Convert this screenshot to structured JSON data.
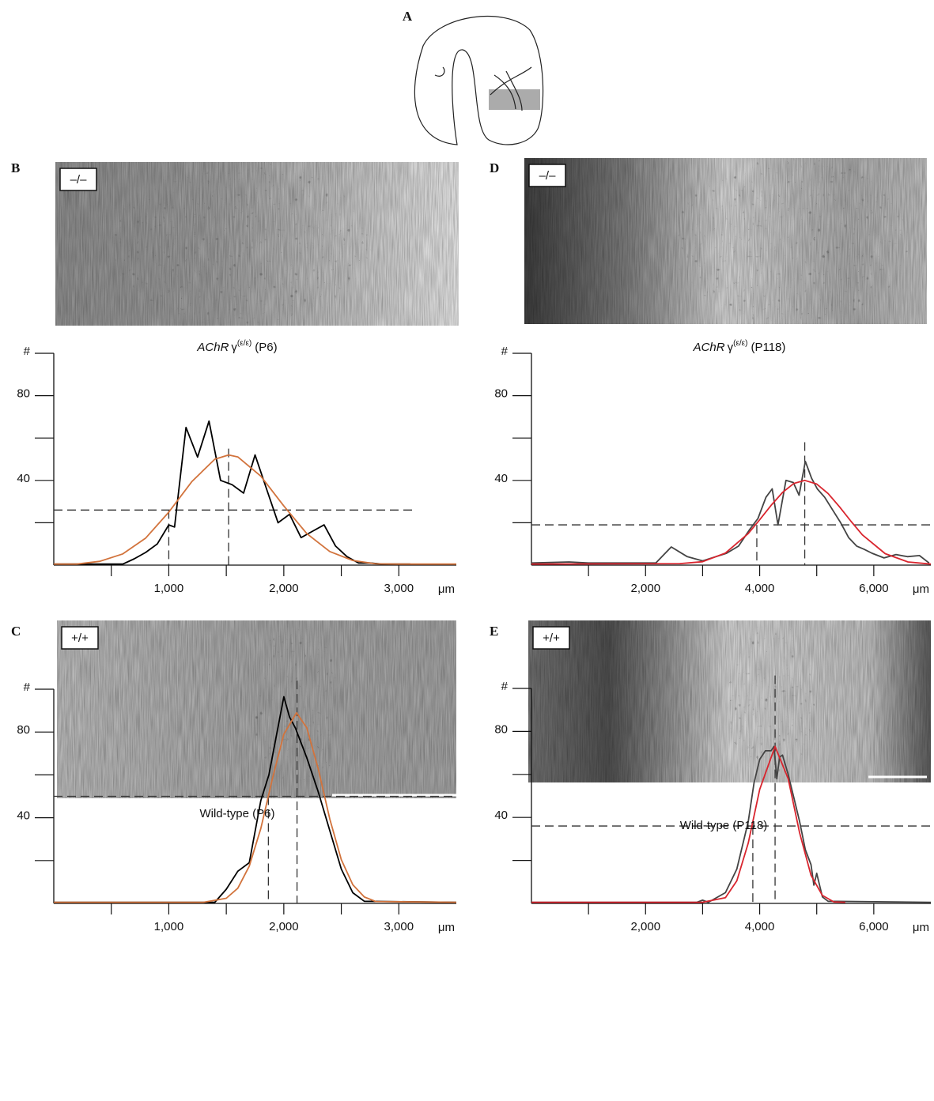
{
  "diagram_label": "A",
  "chart_data": [
    {
      "type": "line",
      "panel": "B",
      "genotype": "–/–",
      "title": {
        "gene": "AChR",
        "symbol": "γ",
        "superscript": "(ε/ε)",
        "stage": "(P6)"
      },
      "xlabel": "μm",
      "xlim": [
        0,
        3500
      ],
      "ylim": [
        0,
        100
      ],
      "xticks": [
        {
          "value": 1000,
          "label": "1,000"
        },
        {
          "value": 2000,
          "label": "2,000"
        },
        {
          "value": 3000,
          "label": "3,000"
        }
      ],
      "minor_xticks": [
        500,
        1500,
        2500
      ],
      "yticks": [
        {
          "value": 100,
          "label": "#"
        },
        80,
        40
      ],
      "minor_yticks": [
        20,
        60
      ],
      "series": [
        {
          "color": "#000000",
          "x": [
            0,
            600,
            700,
            800,
            900,
            1000,
            1050,
            1150,
            1250,
            1350,
            1450,
            1550,
            1650,
            1750,
            1850,
            1950,
            2050,
            2150,
            2250,
            2350,
            2450,
            2550,
            2650,
            2750,
            2850,
            2950,
            3100
          ],
          "values": [
            0.5,
            0.5,
            3,
            6,
            10,
            19,
            18,
            65,
            51,
            68,
            40,
            38,
            34,
            52,
            36,
            20,
            24,
            13,
            16,
            19,
            9,
            4,
            1,
            1,
            0.5,
            0.5,
            0.5
          ]
        },
        {
          "color": "#d2733c",
          "x": [
            0,
            200,
            400,
            600,
            800,
            1000,
            1200,
            1400,
            1520,
            1600,
            1800,
            2000,
            2200,
            2400,
            2600,
            2800,
            3000,
            3500
          ],
          "values": [
            0.5,
            0.5,
            1.8,
            5.3,
            12.8,
            25,
            39.4,
            50,
            52,
            51.1,
            42,
            27.9,
            14.9,
            6.4,
            2.2,
            0.6,
            0.5,
            0.5
          ]
        }
      ],
      "hlines": [
        {
          "y": 26,
          "x": [
            0,
            3150
          ]
        }
      ],
      "vlines": [
        {
          "x": 1000,
          "top": 26
        },
        {
          "x": 1520,
          "top": 55
        }
      ]
    },
    {
      "type": "line",
      "panel": "C",
      "genotype": "+/+",
      "title": "Wild-type (P6)",
      "xlabel": "μm",
      "xlim": [
        0,
        3500
      ],
      "ylim": [
        0,
        100
      ],
      "xticks": [
        {
          "value": 1000,
          "label": "1,000"
        },
        {
          "value": 2000,
          "label": "2,000"
        },
        {
          "value": 3000,
          "label": "3,000"
        }
      ],
      "minor_xticks": [
        500,
        1500,
        2500
      ],
      "yticks": [
        {
          "value": 100,
          "label": "#"
        },
        80,
        40
      ],
      "minor_yticks": [
        20,
        60
      ],
      "series": [
        {
          "color": "#000000",
          "x": [
            0,
            1400,
            1500,
            1600,
            1700,
            1800,
            1870,
            2000,
            2050,
            2100,
            2200,
            2300,
            2400,
            2500,
            2600,
            2700,
            3500
          ],
          "values": [
            0.5,
            0.5,
            6.6,
            15,
            19,
            48,
            60,
            96.5,
            87,
            82,
            68,
            52,
            34,
            16,
            5,
            1,
            0.5
          ]
        },
        {
          "color": "#d2733c",
          "x": [
            0,
            1300,
            1500,
            1600,
            1700,
            1800,
            1900,
            2000,
            2110,
            2200,
            2300,
            2400,
            2500,
            2600,
            2700,
            2800,
            3500
          ],
          "values": [
            0.5,
            0.5,
            2.4,
            7.1,
            17.4,
            35,
            58,
            79,
            89,
            82,
            62.7,
            39.4,
            20.4,
            8.7,
            3,
            0.9,
            0.5
          ]
        }
      ],
      "hlines": [
        {
          "y": 50,
          "x": [
            0,
            3500
          ]
        }
      ],
      "vlines": [
        {
          "x": 1866,
          "top": 50
        },
        {
          "x": 2115,
          "top": 104
        }
      ]
    },
    {
      "type": "line",
      "panel": "D",
      "genotype": "–/–",
      "title": {
        "gene": "AChR",
        "symbol": "γ",
        "superscript": "(ε/ε)",
        "stage": "(P118)"
      },
      "xlabel": "μm",
      "xlim": [
        0,
        7000
      ],
      "ylim": [
        0,
        100
      ],
      "xticks": [
        {
          "value": 2000,
          "label": "2,000"
        },
        {
          "value": 4000,
          "label": "4,000"
        },
        {
          "value": 6000,
          "label": "6,000"
        }
      ],
      "minor_xticks": [
        1000,
        3000,
        5000
      ],
      "yticks": [
        {
          "value": 100,
          "label": "#"
        },
        80,
        40
      ],
      "minor_yticks": [
        20,
        60
      ],
      "series": [
        {
          "color": "#444444",
          "x": [
            0,
            660,
            1000,
            1770,
            2180,
            2450,
            2730,
            3000,
            3420,
            3630,
            3830,
            3970,
            4110,
            4220,
            4320,
            4460,
            4590,
            4690,
            4800,
            4910,
            5010,
            5140,
            5280,
            5420,
            5560,
            5700,
            5830,
            5970,
            6180,
            6390,
            6590,
            6800,
            6970
          ],
          "values": [
            1,
            1.5,
            1,
            1,
            1,
            8.6,
            4,
            2,
            5.6,
            9,
            17,
            22,
            32,
            36,
            19,
            40,
            39,
            33,
            49,
            41,
            36,
            32,
            26,
            20,
            13,
            9,
            7.5,
            5.6,
            3.4,
            5,
            4,
            4.5,
            1
          ]
        },
        {
          "color": "#d9252e",
          "x": [
            0,
            2600,
            3000,
            3400,
            3800,
            4000,
            4200,
            4400,
            4600,
            4790,
            5000,
            5200,
            5400,
            5600,
            5800,
            6200,
            6600,
            7000
          ],
          "values": [
            0.5,
            0.7,
            1.6,
            5.7,
            14.9,
            21.4,
            28.2,
            34.3,
            38.6,
            40,
            38.3,
            33.8,
            27.5,
            20.7,
            14.3,
            5.4,
            1.5,
            0.5
          ]
        }
      ],
      "hlines": [
        {
          "y": 19,
          "x": [
            0,
            7000
          ]
        }
      ],
      "vlines": [
        {
          "x": 3950,
          "top": 19
        },
        {
          "x": 4790,
          "top": 58
        }
      ]
    },
    {
      "type": "line",
      "panel": "E",
      "genotype": "+/+",
      "title": "Wild-type (P118)",
      "xlabel": "μm",
      "xlim": [
        0,
        7000
      ],
      "ylim": [
        0,
        100
      ],
      "xticks": [
        {
          "value": 2000,
          "label": "2,000"
        },
        {
          "value": 4000,
          "label": "4,000"
        },
        {
          "value": 6000,
          "label": "6,000"
        }
      ],
      "minor_xticks": [
        1000,
        3000,
        5000
      ],
      "yticks": [
        {
          "value": 100,
          "label": "#"
        },
        80,
        40
      ],
      "minor_yticks": [
        20,
        60
      ],
      "series": [
        {
          "color": "#444444",
          "x": [
            0,
            2900,
            3000,
            3100,
            3400,
            3600,
            3800,
            3900,
            4000,
            4100,
            4200,
            4250,
            4300,
            4350,
            4400,
            4500,
            4600,
            4700,
            4800,
            4900,
            4950,
            5000,
            5100,
            5200,
            7000
          ],
          "values": [
            0.5,
            0.5,
            1.5,
            0.5,
            5,
            16,
            38,
            56,
            67,
            71,
            71,
            73,
            58,
            68,
            69,
            60,
            49,
            38,
            25,
            18,
            8.5,
            14,
            3,
            1,
            0.5
          ]
        },
        {
          "color": "#d9252e",
          "x": [
            0,
            3000,
            3400,
            3600,
            3800,
            4000,
            4270,
            4500,
            4700,
            4900,
            5100,
            5300,
            5500
          ],
          "values": [
            0.5,
            0.5,
            2.7,
            10.5,
            28,
            53,
            73,
            58,
            32.8,
            13.1,
            3.7,
            0.7,
            0.5
          ]
        }
      ],
      "hlines": [
        {
          "y": 36,
          "x": [
            0,
            7000
          ]
        }
      ],
      "vlines": [
        {
          "x": 3880,
          "top": 36
        },
        {
          "x": 4270,
          "top": 106
        }
      ]
    }
  ]
}
